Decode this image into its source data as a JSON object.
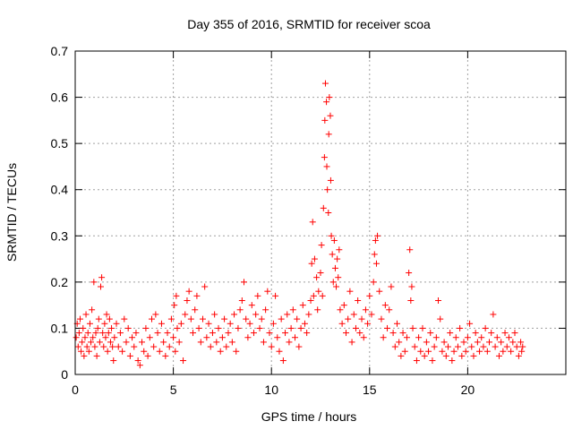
{
  "chart_data": {
    "type": "scatter",
    "title": "Day 355 of 2016, SRMTID for receiver scoa",
    "xlabel": "GPS time / hours",
    "ylabel": "SRMTID / TECUs",
    "xlim": [
      0,
      25
    ],
    "ylim": [
      0,
      0.7
    ],
    "xticks": [
      0,
      5,
      10,
      15,
      20
    ],
    "xtick_labels": [
      "0",
      "5",
      "10",
      "15",
      "20"
    ],
    "yticks": [
      0,
      0.1,
      0.2,
      0.3,
      0.4,
      0.5,
      0.6,
      0.7
    ],
    "ytick_labels": [
      "0",
      "0.1",
      "0.2",
      "0.3",
      "0.4",
      "0.5",
      "0.6",
      "0.7"
    ],
    "grid": true,
    "marker": "+",
    "color": "#ff0000",
    "series": [
      {
        "name": "SRMTID",
        "points": [
          [
            0.05,
            0.08
          ],
          [
            0.1,
            0.11
          ],
          [
            0.15,
            0.06
          ],
          [
            0.2,
            0.09
          ],
          [
            0.25,
            0.12
          ],
          [
            0.3,
            0.05
          ],
          [
            0.35,
            0.07
          ],
          [
            0.4,
            0.1
          ],
          [
            0.45,
            0.04
          ],
          [
            0.5,
            0.08
          ],
          [
            0.55,
            0.13
          ],
          [
            0.6,
            0.06
          ],
          [
            0.65,
            0.09
          ],
          [
            0.7,
            0.05
          ],
          [
            0.75,
            0.11
          ],
          [
            0.8,
            0.07
          ],
          [
            0.85,
            0.14
          ],
          [
            0.9,
            0.08
          ],
          [
            0.95,
            0.2
          ],
          [
            1.0,
            0.06
          ],
          [
            1.05,
            0.09
          ],
          [
            1.1,
            0.04
          ],
          [
            1.15,
            0.1
          ],
          [
            1.2,
            0.12
          ],
          [
            1.25,
            0.07
          ],
          [
            1.3,
            0.19
          ],
          [
            1.35,
            0.21
          ],
          [
            1.4,
            0.09
          ],
          [
            1.45,
            0.06
          ],
          [
            1.5,
            0.11
          ],
          [
            1.55,
            0.08
          ],
          [
            1.6,
            0.13
          ],
          [
            1.65,
            0.05
          ],
          [
            1.7,
            0.09
          ],
          [
            1.75,
            0.12
          ],
          [
            1.8,
            0.07
          ],
          [
            1.85,
            0.1
          ],
          [
            1.9,
            0.06
          ],
          [
            1.95,
            0.03
          ],
          [
            2.0,
            0.08
          ],
          [
            2.1,
            0.11
          ],
          [
            2.2,
            0.06
          ],
          [
            2.3,
            0.09
          ],
          [
            2.4,
            0.05
          ],
          [
            2.5,
            0.12
          ],
          [
            2.6,
            0.07
          ],
          [
            2.7,
            0.1
          ],
          [
            2.8,
            0.04
          ],
          [
            2.9,
            0.08
          ],
          [
            3.0,
            0.06
          ],
          [
            3.1,
            0.09
          ],
          [
            3.2,
            0.03
          ],
          [
            3.3,
            0.02
          ],
          [
            3.4,
            0.07
          ],
          [
            3.5,
            0.05
          ],
          [
            3.6,
            0.1
          ],
          [
            3.7,
            0.04
          ],
          [
            3.8,
            0.08
          ],
          [
            3.9,
            0.12
          ],
          [
            4.0,
            0.06
          ],
          [
            4.1,
            0.13
          ],
          [
            4.2,
            0.09
          ],
          [
            4.3,
            0.05
          ],
          [
            4.4,
            0.11
          ],
          [
            4.5,
            0.07
          ],
          [
            4.6,
            0.04
          ],
          [
            4.7,
            0.09
          ],
          [
            4.8,
            0.06
          ],
          [
            4.9,
            0.12
          ],
          [
            5.0,
            0.08
          ],
          [
            5.05,
            0.15
          ],
          [
            5.1,
            0.05
          ],
          [
            5.15,
            0.17
          ],
          [
            5.2,
            0.1
          ],
          [
            5.3,
            0.07
          ],
          [
            5.4,
            0.11
          ],
          [
            5.5,
            0.03
          ],
          [
            5.6,
            0.13
          ],
          [
            5.7,
            0.16
          ],
          [
            5.8,
            0.18
          ],
          [
            5.9,
            0.12
          ],
          [
            6.0,
            0.09
          ],
          [
            6.1,
            0.14
          ],
          [
            6.2,
            0.17
          ],
          [
            6.3,
            0.1
          ],
          [
            6.4,
            0.07
          ],
          [
            6.5,
            0.12
          ],
          [
            6.6,
            0.19
          ],
          [
            6.7,
            0.08
          ],
          [
            6.8,
            0.11
          ],
          [
            6.9,
            0.06
          ],
          [
            7.0,
            0.09
          ],
          [
            7.1,
            0.13
          ],
          [
            7.2,
            0.07
          ],
          [
            7.3,
            0.1
          ],
          [
            7.4,
            0.05
          ],
          [
            7.5,
            0.08
          ],
          [
            7.6,
            0.12
          ],
          [
            7.7,
            0.06
          ],
          [
            7.8,
            0.09
          ],
          [
            7.9,
            0.11
          ],
          [
            8.0,
            0.07
          ],
          [
            8.1,
            0.13
          ],
          [
            8.2,
            0.05
          ],
          [
            8.3,
            0.1
          ],
          [
            8.4,
            0.14
          ],
          [
            8.5,
            0.16
          ],
          [
            8.6,
            0.2
          ],
          [
            8.7,
            0.12
          ],
          [
            8.8,
            0.08
          ],
          [
            8.9,
            0.11
          ],
          [
            9.0,
            0.15
          ],
          [
            9.1,
            0.09
          ],
          [
            9.2,
            0.13
          ],
          [
            9.3,
            0.17
          ],
          [
            9.4,
            0.1
          ],
          [
            9.5,
            0.12
          ],
          [
            9.6,
            0.07
          ],
          [
            9.7,
            0.14
          ],
          [
            9.8,
            0.18
          ],
          [
            9.9,
            0.09
          ],
          [
            10.0,
            0.06
          ],
          [
            10.1,
            0.11
          ],
          [
            10.2,
            0.17
          ],
          [
            10.3,
            0.08
          ],
          [
            10.4,
            0.05
          ],
          [
            10.5,
            0.12
          ],
          [
            10.6,
            0.03
          ],
          [
            10.7,
            0.09
          ],
          [
            10.8,
            0.13
          ],
          [
            10.9,
            0.07
          ],
          [
            11.0,
            0.1
          ],
          [
            11.1,
            0.14
          ],
          [
            11.2,
            0.08
          ],
          [
            11.3,
            0.12
          ],
          [
            11.4,
            0.06
          ],
          [
            11.5,
            0.1
          ],
          [
            11.6,
            0.15
          ],
          [
            11.7,
            0.11
          ],
          [
            11.8,
            0.09
          ],
          [
            11.9,
            0.13
          ],
          [
            12.0,
            0.16
          ],
          [
            12.05,
            0.24
          ],
          [
            12.1,
            0.33
          ],
          [
            12.15,
            0.17
          ],
          [
            12.2,
            0.25
          ],
          [
            12.3,
            0.21
          ],
          [
            12.35,
            0.14
          ],
          [
            12.4,
            0.18
          ],
          [
            12.5,
            0.22
          ],
          [
            12.55,
            0.28
          ],
          [
            12.6,
            0.17
          ],
          [
            12.65,
            0.36
          ],
          [
            12.7,
            0.47
          ],
          [
            12.72,
            0.55
          ],
          [
            12.75,
            0.63
          ],
          [
            12.8,
            0.59
          ],
          [
            12.82,
            0.45
          ],
          [
            12.85,
            0.4
          ],
          [
            12.9,
            0.35
          ],
          [
            12.92,
            0.52
          ],
          [
            12.95,
            0.6
          ],
          [
            13.0,
            0.56
          ],
          [
            13.02,
            0.42
          ],
          [
            13.05,
            0.3
          ],
          [
            13.1,
            0.26
          ],
          [
            13.15,
            0.2
          ],
          [
            13.2,
            0.29
          ],
          [
            13.25,
            0.23
          ],
          [
            13.3,
            0.19
          ],
          [
            13.35,
            0.25
          ],
          [
            13.4,
            0.21
          ],
          [
            13.45,
            0.27
          ],
          [
            13.5,
            0.14
          ],
          [
            13.6,
            0.11
          ],
          [
            13.7,
            0.15
          ],
          [
            13.8,
            0.09
          ],
          [
            13.9,
            0.12
          ],
          [
            14.0,
            0.18
          ],
          [
            14.1,
            0.07
          ],
          [
            14.2,
            0.13
          ],
          [
            14.3,
            0.1
          ],
          [
            14.4,
            0.16
          ],
          [
            14.5,
            0.09
          ],
          [
            14.6,
            0.12
          ],
          [
            14.7,
            0.08
          ],
          [
            14.8,
            0.14
          ],
          [
            14.9,
            0.11
          ],
          [
            15.0,
            0.17
          ],
          [
            15.1,
            0.13
          ],
          [
            15.2,
            0.2
          ],
          [
            15.25,
            0.26
          ],
          [
            15.3,
            0.29
          ],
          [
            15.35,
            0.24
          ],
          [
            15.4,
            0.3
          ],
          [
            15.5,
            0.18
          ],
          [
            15.6,
            0.12
          ],
          [
            15.7,
            0.08
          ],
          [
            15.8,
            0.15
          ],
          [
            15.9,
            0.1
          ],
          [
            16.0,
            0.14
          ],
          [
            16.1,
            0.19
          ],
          [
            16.2,
            0.09
          ],
          [
            16.3,
            0.06
          ],
          [
            16.4,
            0.11
          ],
          [
            16.5,
            0.07
          ],
          [
            16.6,
            0.04
          ],
          [
            16.7,
            0.09
          ],
          [
            16.8,
            0.05
          ],
          [
            16.9,
            0.08
          ],
          [
            17.0,
            0.22
          ],
          [
            17.05,
            0.27
          ],
          [
            17.1,
            0.16
          ],
          [
            17.15,
            0.19
          ],
          [
            17.2,
            0.1
          ],
          [
            17.3,
            0.06
          ],
          [
            17.4,
            0.03
          ],
          [
            17.5,
            0.08
          ],
          [
            17.6,
            0.05
          ],
          [
            17.7,
            0.1
          ],
          [
            17.8,
            0.04
          ],
          [
            17.9,
            0.07
          ],
          [
            18.0,
            0.05
          ],
          [
            18.1,
            0.09
          ],
          [
            18.2,
            0.03
          ],
          [
            18.3,
            0.06
          ],
          [
            18.4,
            0.08
          ],
          [
            18.5,
            0.16
          ],
          [
            18.6,
            0.12
          ],
          [
            18.7,
            0.05
          ],
          [
            18.8,
            0.07
          ],
          [
            18.9,
            0.04
          ],
          [
            19.0,
            0.06
          ],
          [
            19.1,
            0.09
          ],
          [
            19.2,
            0.03
          ],
          [
            19.3,
            0.05
          ],
          [
            19.4,
            0.08
          ],
          [
            19.5,
            0.06
          ],
          [
            19.6,
            0.1
          ],
          [
            19.7,
            0.04
          ],
          [
            19.8,
            0.07
          ],
          [
            19.9,
            0.05
          ],
          [
            20.0,
            0.08
          ],
          [
            20.1,
            0.11
          ],
          [
            20.2,
            0.06
          ],
          [
            20.3,
            0.04
          ],
          [
            20.4,
            0.09
          ],
          [
            20.5,
            0.07
          ],
          [
            20.6,
            0.05
          ],
          [
            20.7,
            0.08
          ],
          [
            20.8,
            0.06
          ],
          [
            20.9,
            0.1
          ],
          [
            21.0,
            0.05
          ],
          [
            21.1,
            0.07
          ],
          [
            21.2,
            0.09
          ],
          [
            21.3,
            0.13
          ],
          [
            21.4,
            0.06
          ],
          [
            21.5,
            0.08
          ],
          [
            21.6,
            0.04
          ],
          [
            21.7,
            0.07
          ],
          [
            21.8,
            0.05
          ],
          [
            21.9,
            0.09
          ],
          [
            22.0,
            0.06
          ],
          [
            22.1,
            0.08
          ],
          [
            22.2,
            0.05
          ],
          [
            22.3,
            0.07
          ],
          [
            22.4,
            0.09
          ],
          [
            22.5,
            0.06
          ],
          [
            22.6,
            0.04
          ],
          [
            22.7,
            0.07
          ],
          [
            22.75,
            0.05
          ],
          [
            22.8,
            0.06
          ]
        ]
      }
    ]
  }
}
